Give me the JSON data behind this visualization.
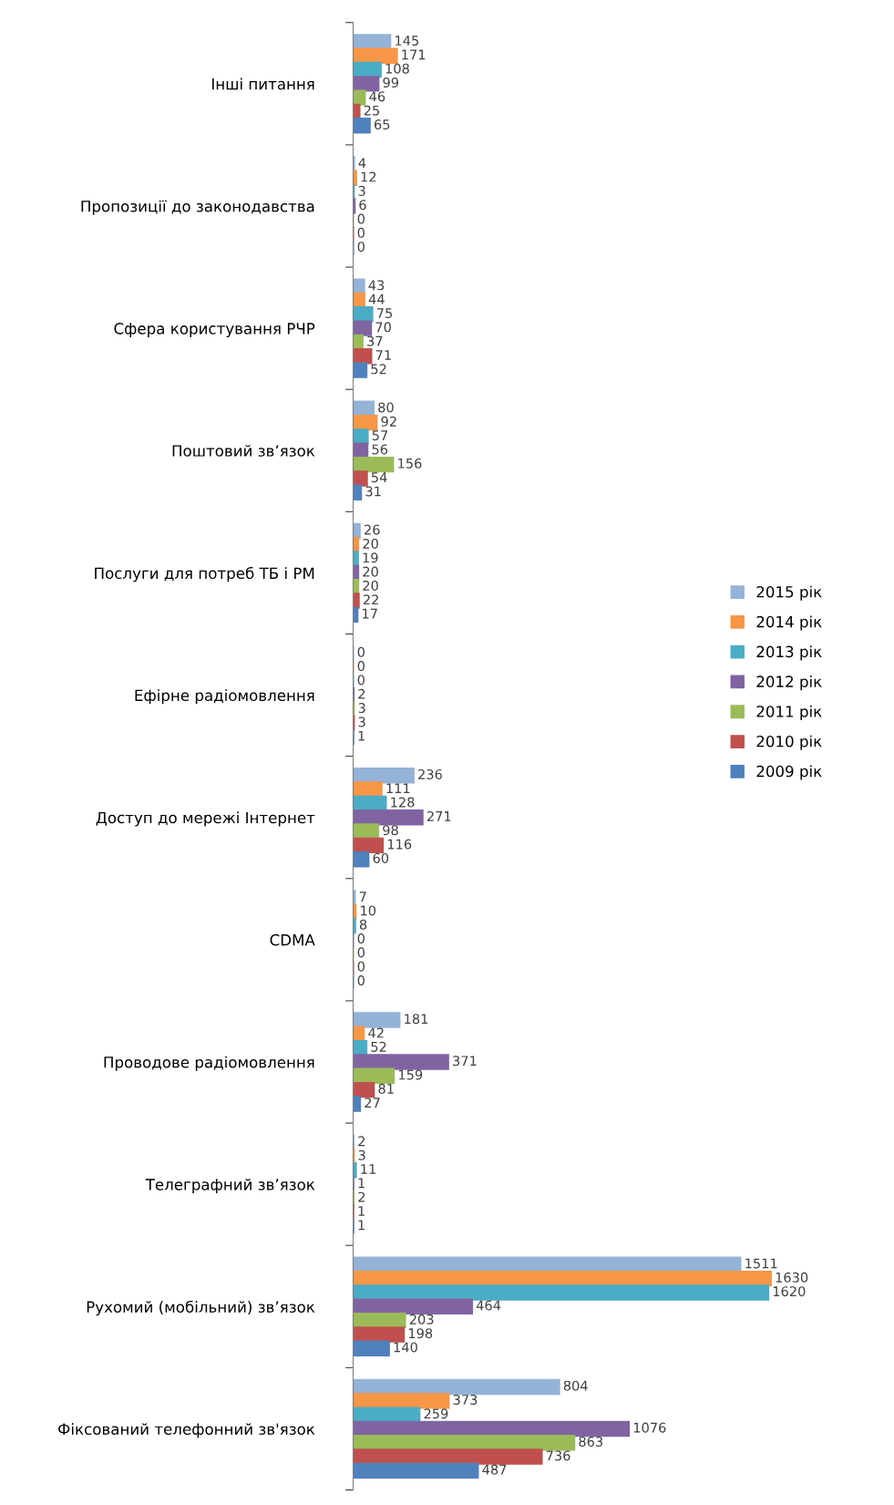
{
  "chart_data": {
    "type": "bar",
    "orientation": "horizontal",
    "categories": [
      "Інші питання",
      "Пропозиції до законодавства",
      "Сфера користування РЧР",
      "Поштовий зв’язок",
      "Послуги для потреб ТБ і РМ",
      "Ефірне радіомовлення",
      "Доступ до мережі Інтернет",
      "CDMA",
      "Проводове радіомовлення",
      "Телеграфний зв’язок",
      "Рухомий (мобільний) зв’язок",
      "Фіксований телефонний зв'язок"
    ],
    "series": [
      {
        "name": "2015 рік",
        "color": "#95b3d7",
        "values": [
          145,
          4,
          43,
          80,
          26,
          0,
          236,
          7,
          181,
          2,
          1511,
          804
        ]
      },
      {
        "name": "2014 рік",
        "color": "#f79646",
        "values": [
          171,
          12,
          44,
          92,
          20,
          0,
          111,
          10,
          42,
          3,
          1630,
          373
        ]
      },
      {
        "name": "2013 рік",
        "color": "#4bacc6",
        "values": [
          108,
          3,
          75,
          57,
          19,
          0,
          128,
          8,
          52,
          11,
          1620,
          259
        ]
      },
      {
        "name": "2012 рік",
        "color": "#8064a2",
        "values": [
          99,
          6,
          70,
          56,
          20,
          2,
          271,
          0,
          371,
          1,
          464,
          1076
        ]
      },
      {
        "name": "2011 рік",
        "color": "#9bbb59",
        "values": [
          46,
          0,
          37,
          156,
          20,
          3,
          98,
          0,
          159,
          2,
          203,
          863
        ]
      },
      {
        "name": "2010 рік",
        "color": "#c0504d",
        "values": [
          25,
          0,
          71,
          54,
          22,
          3,
          116,
          0,
          81,
          1,
          198,
          736
        ]
      },
      {
        "name": "2009 рік",
        "color": "#4f81bd",
        "values": [
          65,
          0,
          52,
          31,
          17,
          1,
          60,
          0,
          27,
          1,
          140,
          487
        ]
      }
    ],
    "data_labels": true,
    "legend": "right",
    "grid": false,
    "tick_labels": "y"
  }
}
